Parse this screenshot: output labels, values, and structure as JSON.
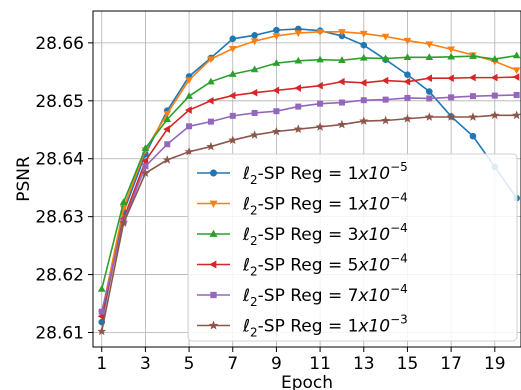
{
  "chart_data": {
    "type": "line",
    "title": "",
    "xlabel": "Epoch",
    "ylabel": "PSNR",
    "xlim": [
      0.6,
      20.2
    ],
    "ylim": [
      28.6075,
      28.6655
    ],
    "xticks": [
      1,
      3,
      5,
      7,
      9,
      11,
      13,
      15,
      17,
      19
    ],
    "xtick_labels": [
      "1",
      "3",
      "5",
      "7",
      "9",
      "11",
      "13",
      "15",
      "17",
      "19"
    ],
    "yticks": [
      28.61,
      28.62,
      28.63,
      28.64,
      28.65,
      28.66
    ],
    "ytick_labels": [
      "28.61",
      "28.62",
      "28.63",
      "28.64",
      "28.65",
      "28.66"
    ],
    "grid": true,
    "legend_position": "lower-right",
    "x": [
      1,
      2,
      3,
      4,
      5,
      6,
      7,
      8,
      9,
      10,
      11,
      12,
      13,
      14,
      15,
      16,
      17,
      18,
      19,
      20
    ],
    "series": [
      {
        "name": "ℓ2-SP Reg = 1x10−5",
        "legend_prefix": "ℓ",
        "legend_sub": "2",
        "legend_mid": "-SP Reg = 1",
        "legend_base": "x10",
        "legend_exp": "−5",
        "color": "#1f77b4",
        "marker": "circle",
        "values": [
          28.6118,
          28.6308,
          28.6408,
          28.6483,
          28.6542,
          28.6574,
          28.6607,
          28.6613,
          28.6622,
          28.6624,
          28.6621,
          28.6612,
          28.6596,
          28.6571,
          28.6545,
          28.6516,
          28.6473,
          28.6439,
          28.6386,
          28.6332
        ]
      },
      {
        "name": "ℓ2-SP Reg = 1x10−4",
        "legend_prefix": "ℓ",
        "legend_sub": "2",
        "legend_mid": "-SP Reg = 1",
        "legend_base": "x10",
        "legend_exp": "−4",
        "color": "#ff7f0e",
        "marker": "triangle-down",
        "values": [
          28.6133,
          28.6315,
          28.6415,
          28.6478,
          28.6536,
          28.6572,
          28.659,
          28.6603,
          28.6612,
          28.6617,
          28.6619,
          28.6619,
          28.6616,
          28.6611,
          28.6604,
          28.6598,
          28.6589,
          28.6579,
          28.6568,
          28.6553
        ]
      },
      {
        "name": "ℓ2-SP Reg = 3x10−4",
        "legend_prefix": "ℓ",
        "legend_sub": "2",
        "legend_mid": "-SP Reg = 3",
        "legend_base": "x10",
        "legend_exp": "−4",
        "color": "#2ca02c",
        "marker": "triangle-up",
        "values": [
          28.6175,
          28.6325,
          28.6418,
          28.6468,
          28.6508,
          28.6533,
          28.6546,
          28.6554,
          28.6565,
          28.6569,
          28.6571,
          28.657,
          28.6574,
          28.6573,
          28.6575,
          28.6575,
          28.6576,
          28.6577,
          28.6572,
          28.6578
        ]
      },
      {
        "name": "ℓ2-SP Reg = 5x10−4",
        "legend_prefix": "ℓ",
        "legend_sub": "2",
        "legend_mid": "-SP Reg = 5",
        "legend_base": "x10",
        "legend_exp": "−4",
        "color": "#d62728",
        "marker": "triangle-left",
        "values": [
          28.6128,
          28.6296,
          28.6396,
          28.6451,
          28.6484,
          28.65,
          28.6509,
          28.6514,
          28.6518,
          28.6522,
          28.6526,
          28.6533,
          28.6531,
          28.6535,
          28.6533,
          28.6539,
          28.6539,
          28.654,
          28.654,
          28.6541
        ]
      },
      {
        "name": "ℓ2-SP Reg = 7x10−4",
        "legend_prefix": "ℓ",
        "legend_sub": "2",
        "legend_mid": "-SP Reg = 7",
        "legend_base": "x10",
        "legend_exp": "−4",
        "color": "#9467bd",
        "marker": "square",
        "values": [
          28.6136,
          28.6291,
          28.6387,
          28.6425,
          28.6456,
          28.6464,
          28.6474,
          28.6479,
          28.6482,
          28.649,
          28.6495,
          28.6497,
          28.6501,
          28.6502,
          28.6505,
          28.6504,
          28.6506,
          28.6508,
          28.6509,
          28.651
        ]
      },
      {
        "name": "ℓ2-SP Reg = 1x10−3",
        "legend_prefix": "ℓ",
        "legend_sub": "2",
        "legend_mid": "-SP Reg = 1",
        "legend_base": "x10",
        "legend_exp": "−3",
        "color": "#8c564b",
        "marker": "star",
        "values": [
          28.6102,
          28.6289,
          28.6375,
          28.6398,
          28.6412,
          28.6421,
          28.6432,
          28.6441,
          28.6447,
          28.6451,
          28.6455,
          28.6459,
          28.6465,
          28.6466,
          28.6469,
          28.6472,
          28.6472,
          28.6472,
          28.6475,
          28.6475
        ]
      }
    ]
  }
}
